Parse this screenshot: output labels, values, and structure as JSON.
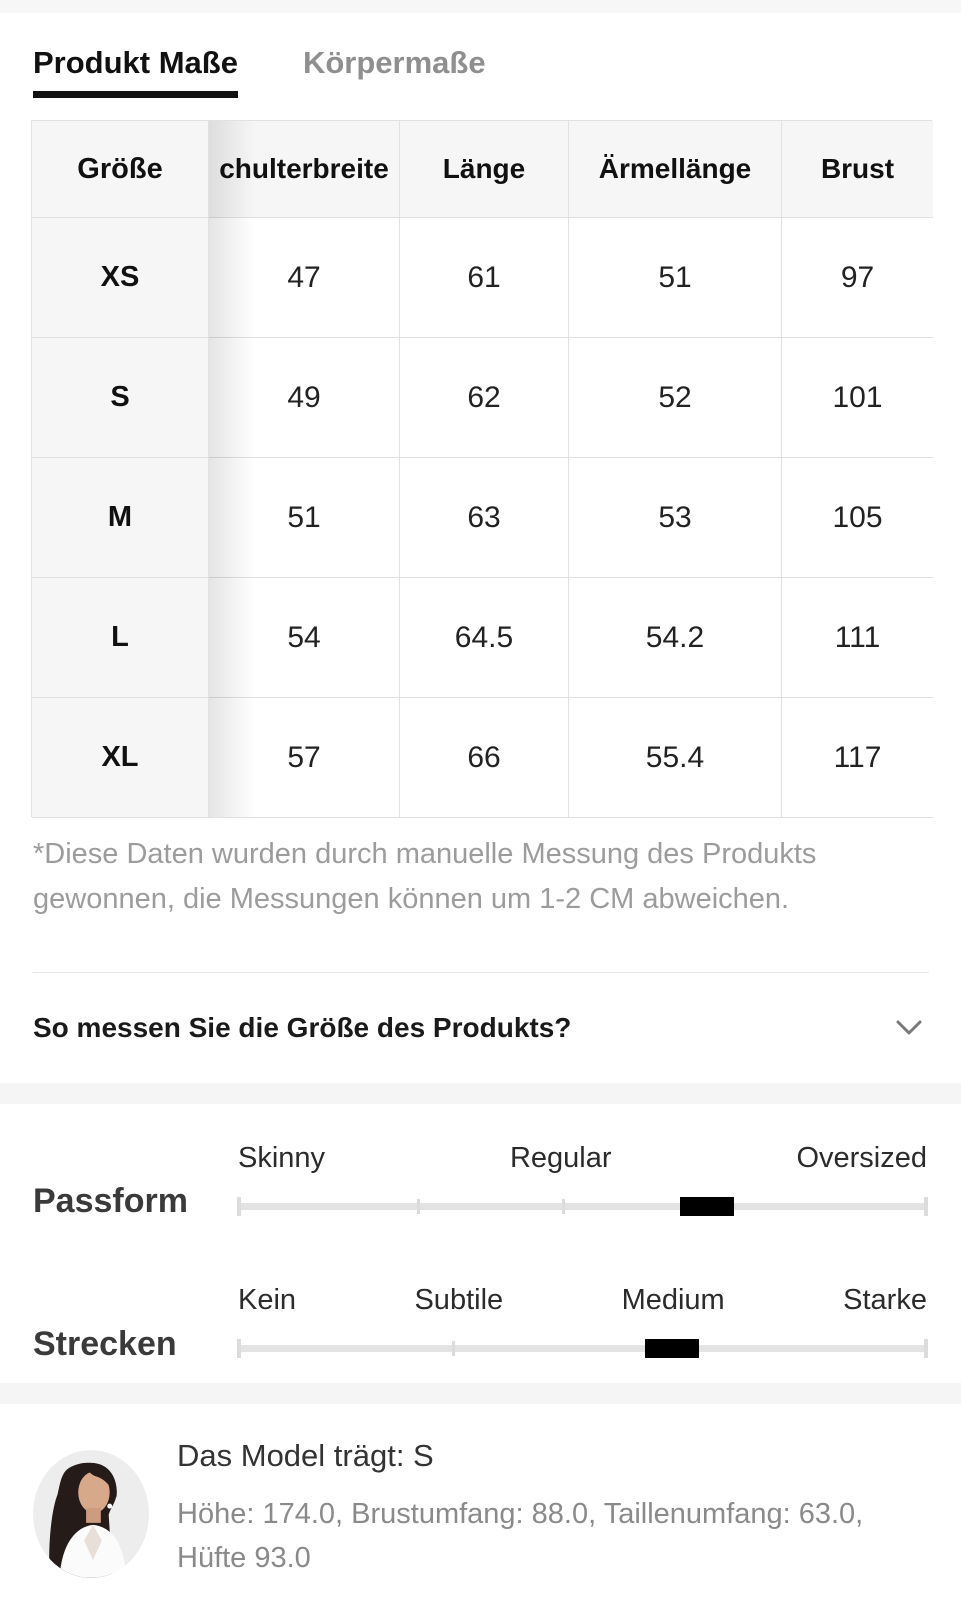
{
  "tabs": {
    "active": "Produkt Maße",
    "inactive": "Körpermaße"
  },
  "size_table": {
    "columns": [
      "Größe",
      "chulterbreite",
      "Länge",
      "Ärmellänge",
      "Brust"
    ],
    "rows": [
      {
        "size": "XS",
        "values": [
          "47",
          "61",
          "51",
          "97"
        ]
      },
      {
        "size": "S",
        "values": [
          "49",
          "62",
          "52",
          "101"
        ]
      },
      {
        "size": "M",
        "values": [
          "51",
          "63",
          "53",
          "105"
        ]
      },
      {
        "size": "L",
        "values": [
          "54",
          "64.5",
          "54.2",
          "111"
        ]
      },
      {
        "size": "XL",
        "values": [
          "57",
          "66",
          "55.4",
          "117"
        ]
      }
    ]
  },
  "disclaimer": "*Diese Daten wurden durch manuelle Messung des Produkts gewonnen, die Messungen können um 1-2 CM abweichen.",
  "measure_question": "So messen Sie die Größe des Produkts?",
  "fit": {
    "passform": {
      "label": "Passform",
      "options": [
        "Skinny",
        "Regular",
        "Oversized"
      ],
      "value_percent": 68
    },
    "strecken": {
      "label": "Strecken",
      "options": [
        "Kein",
        "Subtile",
        "Medium",
        "Starke"
      ],
      "value_percent": 63
    }
  },
  "model": {
    "title": "Das Model trägt: S",
    "stats": "Höhe: 174.0, Brustumfang: 88.0, Taillenumfang: 63.0, Hüfte 93.0"
  },
  "colors": {
    "tab_active": "#111111",
    "tab_inactive": "#8f8f8f",
    "table_head_bg": "#f6f6f6",
    "slider_handle": "#000000",
    "muted_text": "#9c9c9c"
  }
}
